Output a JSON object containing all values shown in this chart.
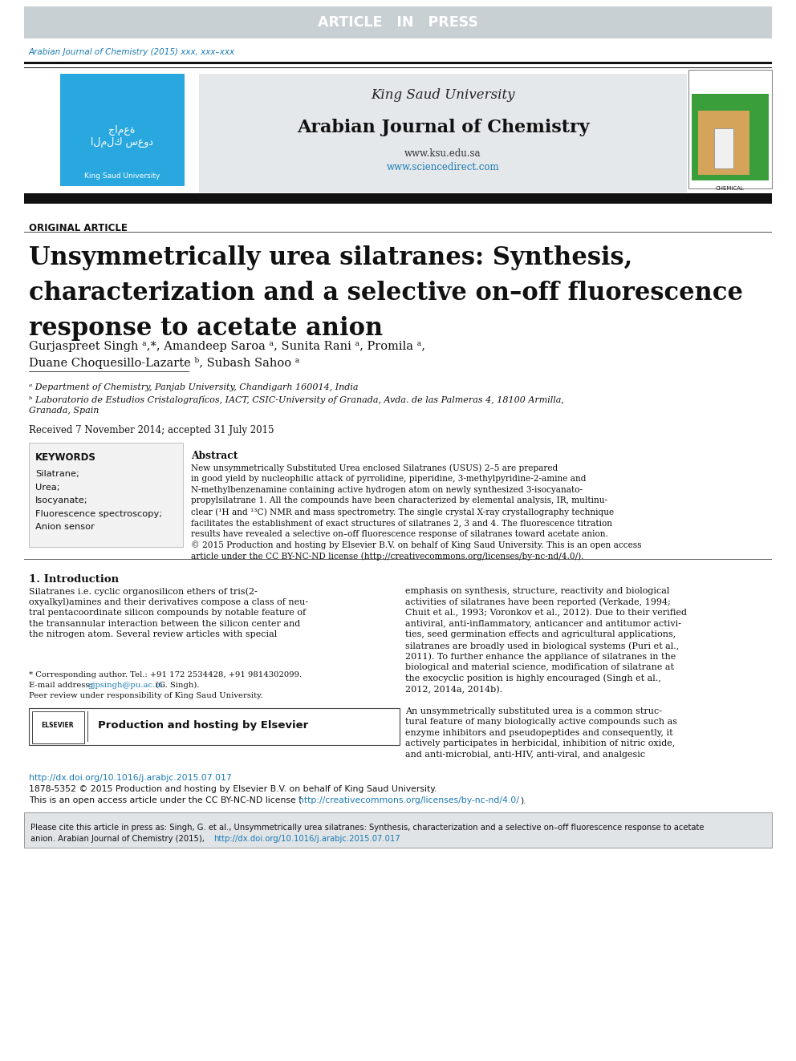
{
  "article_in_press_bg": "#c8d0d4",
  "article_in_press_text": "ARTICLE   IN   PRESS",
  "journal_ref": "Arabian Journal of Chemistry (2015) xxx, xxx–xxx",
  "journal_ref_color": "#1a7ab5",
  "university_name": "King Saud University",
  "journal_name": "Arabian Journal of Chemistry",
  "website1": "www.ksu.edu.sa",
  "website2": "www.sciencedirect.com",
  "website2_color": "#1a7ab5",
  "header_bg": "#e4e8ea",
  "dark_bar_color": "#111111",
  "original_article_label": "ORIGINAL ARTICLE",
  "main_title_line1": "Unsymmetrically urea silatranes: Synthesis,",
  "main_title_line2": "characterization and a selective on–off fluorescence",
  "main_title_line3": "response to acetate anion",
  "authors_line1": "Gurjaspreet Singh ᵃ,*, Amandeep Saroa ᵃ, Sunita Rani ᵃ, Promila ᵃ,",
  "authors_line2": "Duane Choquesillo-Lazarte ᵇ, Subash Sahoo ᵃ",
  "affil_a": "ᵃ Department of Chemistry, Panjab University, Chandigarh 160014, India",
  "affil_b1": "ᵇ Laboratorio de Estudios Cristalografícos, IACT, CSIC-University of Granada, Avda. de las Palmeras 4, 18100 Armilla,",
  "affil_b2": "Granada, Spain",
  "received": "Received 7 November 2014; accepted 31 July 2015",
  "keywords_title": "KEYWORDS",
  "keywords": [
    "Silatrane;",
    "Urea;",
    "Isocyanate;",
    "Fluorescence spectroscopy;",
    "Anion sensor"
  ],
  "abstract_title": "Abstract",
  "abstract_lines": [
    "New unsymmetrically Substituted Urea enclosed Silatranes (USUS) 2–5 are prepared",
    "in good yield by nucleophilic attack of pyrrolidine, piperidine, 3-methylpyridine-2-amine and",
    "N-methylbenzenamine containing active hydrogen atom on newly synthesized 3-isocyanato-",
    "propylsilatrane 1. All the compounds have been characterized by elemental analysis, IR, multinu-",
    "clear (¹H and ¹³C) NMR and mass spectrometry. The single crystal X-ray crystallography technique",
    "facilitates the establishment of exact structures of silatranes 2, 3 and 4. The fluorescence titration",
    "results have revealed a selective on–off fluorescence response of silatranes toward acetate anion.",
    "© 2015 Production and hosting by Elsevier B.V. on behalf of King Saud University. This is an open access",
    "article under the CC BY-NC-ND license (http://creativecommons.org/licenses/by-nc-nd/4.0/)."
  ],
  "intro_title": "1. Introduction",
  "intro_left_lines": [
    "Silatranes i.e. cyclic organosilicon ethers of tris(2-",
    "oxyalkyl)amines and their derivatives compose a class of neu-",
    "tral pentacoordinate silicon compounds by notable feature of",
    "the transannular interaction between the silicon center and",
    "the nitrogen atom. Several review articles with special"
  ],
  "intro_right_lines": [
    "emphasis on synthesis, structure, reactivity and biological",
    "activities of silatranes have been reported (Verkade, 1994;",
    "Chuit et al., 1993; Voronkov et al., 2012). Due to their verified",
    "antiviral, anti-inflammatory, anticancer and antitumor activi-",
    "ties, seed germination effects and agricultural applications,",
    "silatranes are broadly used in biological systems (Puri et al.,",
    "2011). To further enhance the appliance of silatranes in the",
    "biological and material science, modification of silatrane at",
    "the exocyclic position is highly encouraged (Singh et al.,",
    "2012, 2014a, 2014b)."
  ],
  "intro_right2_lines": [
    "An unsymmetrically substituted urea is a common struc-",
    "tural feature of many biologically active compounds such as",
    "enzyme inhibitors and pseudopeptides and consequently, it",
    "actively participates in herbicidal, inhibition of nitric oxide,",
    "and anti-microbial, anti-HIV, anti-viral, and analgesic"
  ],
  "footnote_star": "* Corresponding author. Tel.: +91 172 2534428, +91 9814302099.",
  "footnote_email_pre": "E-mail address: ",
  "footnote_email_link": "gjpsingh@pu.ac.in",
  "footnote_email_post": " (G. Singh).",
  "footnote_review": "Peer review under responsibility of King Saud University.",
  "elsevier_label": "ELSEVIER",
  "elsevier_text": "Production and hosting by Elsevier",
  "doi_link": "http://dx.doi.org/10.1016/j.arabjc.2015.07.017",
  "link_color": "#1a7ab5",
  "footer_line1": "1878-5352 © 2015 Production and hosting by Elsevier B.V. on behalf of King Saud University.",
  "footer_line2a": "This is an open access article under the CC BY-NC-ND license (",
  "footer_line2b": "http://creativecommons.org/licenses/by-nc-nd/4.0/",
  "footer_line2c": ").",
  "cite_line1": "Please cite this article in press as: Singh, G. et al., Unsymmetrically urea silatranes: Synthesis, characterization and a selective on–off fluorescence response to acetate",
  "cite_line2a": "anion. Arabian Journal of Chemistry (2015), ",
  "cite_line2b": "http://dx.doi.org/10.1016/j.arabjc.2015.07.017",
  "bg_color": "#ffffff"
}
